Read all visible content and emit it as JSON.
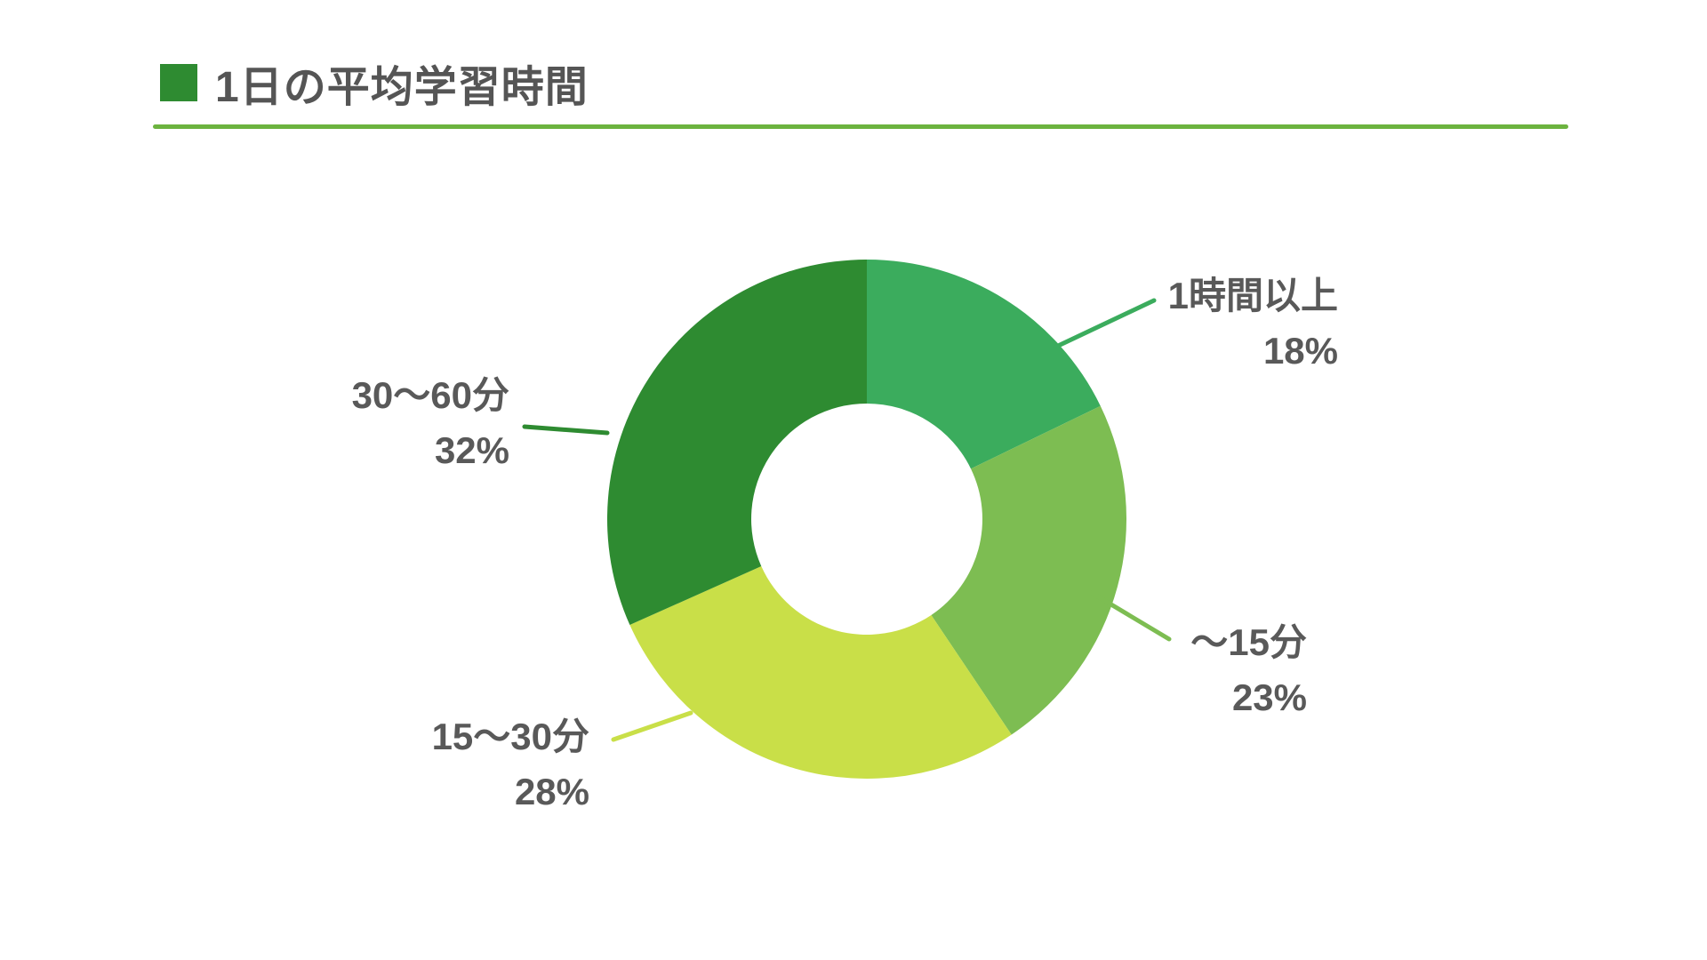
{
  "header": {
    "title": "1日の平均学習時間",
    "accent_square_color": "#2E8B31",
    "underline_color": "#6CB33F"
  },
  "chart_data": {
    "type": "pie",
    "subtype": "donut",
    "title": "1日の平均学習時間",
    "start_angle": "top",
    "direction": "clockwise",
    "legend_position": "outside-callout-labels",
    "segments": [
      {
        "label": "1時間以上",
        "value": 18,
        "pct_label": "18%",
        "color": "#3BAC5D"
      },
      {
        "label": "～15分",
        "value": 23,
        "pct_label": "23%",
        "color": "#7DBD52"
      },
      {
        "label": "15～30分",
        "value": 28,
        "pct_label": "28%",
        "color": "#C9DF48"
      },
      {
        "label": "30～60分",
        "value": 32,
        "pct_label": "32%",
        "color": "#2E8B31"
      }
    ]
  }
}
